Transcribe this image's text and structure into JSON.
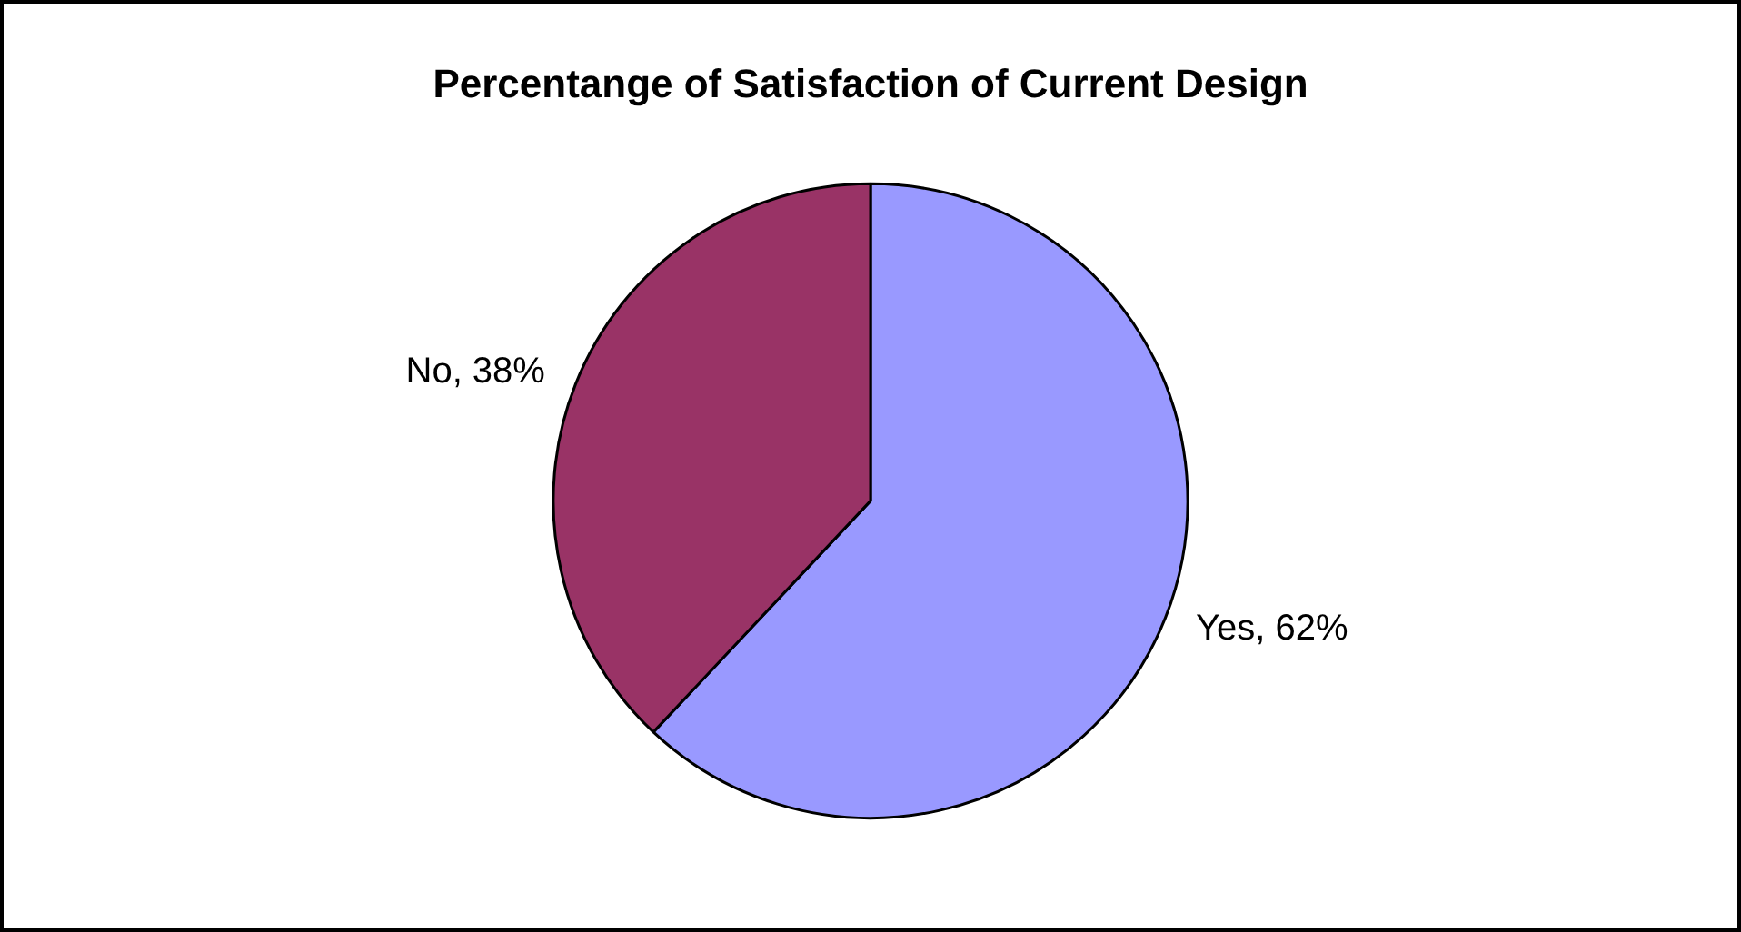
{
  "chart_data": {
    "type": "pie",
    "title": "Percentange of Satisfaction of Current Design",
    "categories": [
      "Yes",
      "No"
    ],
    "values": [
      62,
      38
    ],
    "colors": [
      "#9999ff",
      "#993366"
    ],
    "value_labels": [
      "62%",
      "38%"
    ],
    "legend": false
  }
}
